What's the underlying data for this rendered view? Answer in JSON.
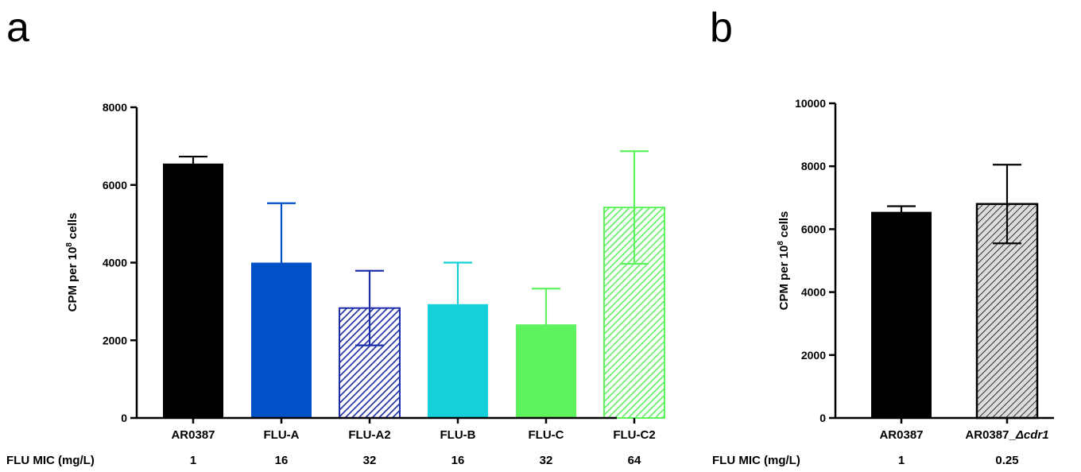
{
  "chart_data": [
    {
      "type": "bar",
      "panel": "a",
      "ylabel": "CPM per 10",
      "ylabel_sup": "8",
      "ylabel_tail": " cells",
      "ylim": [
        0,
        8000
      ],
      "yticks": [
        0,
        2000,
        4000,
        6000,
        8000
      ],
      "grid": false,
      "categories": [
        "AR0387",
        "FLU-A",
        "FLU-A2",
        "FLU-B",
        "FLU-C",
        "FLU-C2"
      ],
      "values": [
        6550,
        4000,
        2830,
        2930,
        2410,
        5420
      ],
      "errors": [
        180,
        1530,
        960,
        1070,
        920,
        1450
      ],
      "colors": [
        "#000000",
        "#0050c8",
        "#1f2fa8",
        "#15d0d8",
        "#5ef35e",
        "#5ef35e"
      ],
      "hatched": [
        false,
        false,
        true,
        false,
        false,
        true
      ],
      "row_label": "FLU MIC (mg/L)",
      "row_values": [
        "1",
        "16",
        "32",
        "16",
        "32",
        "64"
      ]
    },
    {
      "type": "bar",
      "panel": "b",
      "ylabel": "CPM per 10",
      "ylabel_sup": "8",
      "ylabel_tail": " cells",
      "ylim": [
        0,
        10000
      ],
      "yticks": [
        0,
        2000,
        4000,
        6000,
        8000,
        10000
      ],
      "grid": false,
      "categories": [
        "AR0387",
        "AR0387_Δcdr1"
      ],
      "category_parts": [
        {
          "plain": "AR0387",
          "italic": ""
        },
        {
          "plain": "AR0387_",
          "italic": "Δcdr1"
        }
      ],
      "values": [
        6550,
        6800
      ],
      "errors": [
        180,
        1250
      ],
      "colors": [
        "#000000",
        "#cfcfcf"
      ],
      "hatched": [
        false,
        true
      ],
      "row_label": "FLU MIC (mg/L)",
      "row_values": [
        "1",
        "0.25"
      ]
    }
  ]
}
